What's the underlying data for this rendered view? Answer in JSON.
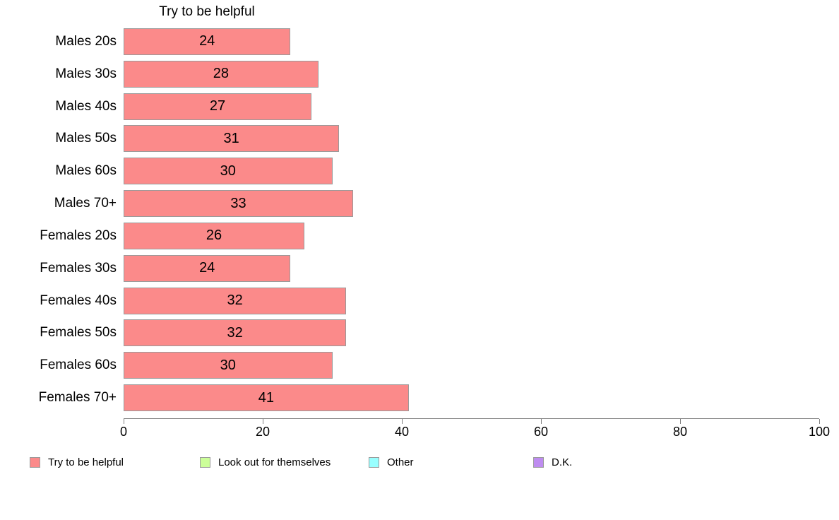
{
  "chart_data": {
    "type": "bar",
    "orientation": "horizontal",
    "title": "Try to be helpful",
    "categories": [
      "Males 20s",
      "Males 30s",
      "Males 40s",
      "Males 50s",
      "Males 60s",
      "Males 70+",
      "Females 20s",
      "Females 30s",
      "Females 40s",
      "Females 50s",
      "Females 60s",
      "Females 70+"
    ],
    "values": [
      24,
      28,
      27,
      31,
      30,
      33,
      26,
      24,
      32,
      32,
      30,
      41
    ],
    "value_labels_shown": true,
    "xlim": [
      0,
      100
    ],
    "x_ticks": [
      0,
      20,
      40,
      60,
      80,
      100
    ],
    "grid": false,
    "bar_color": "#FB8A8A",
    "bar_border_color": "#9A9A9A",
    "axis_color": "#808080",
    "legend_position": "bottom",
    "legend": [
      {
        "label": "Try to be helpful",
        "color": "#FB8A8A"
      },
      {
        "label": "Look out for themselves",
        "color": "#CCFF99"
      },
      {
        "label": "Other",
        "color": "#99FFFF"
      },
      {
        "label": "D.K.",
        "color": "#BE8CF0"
      }
    ]
  }
}
